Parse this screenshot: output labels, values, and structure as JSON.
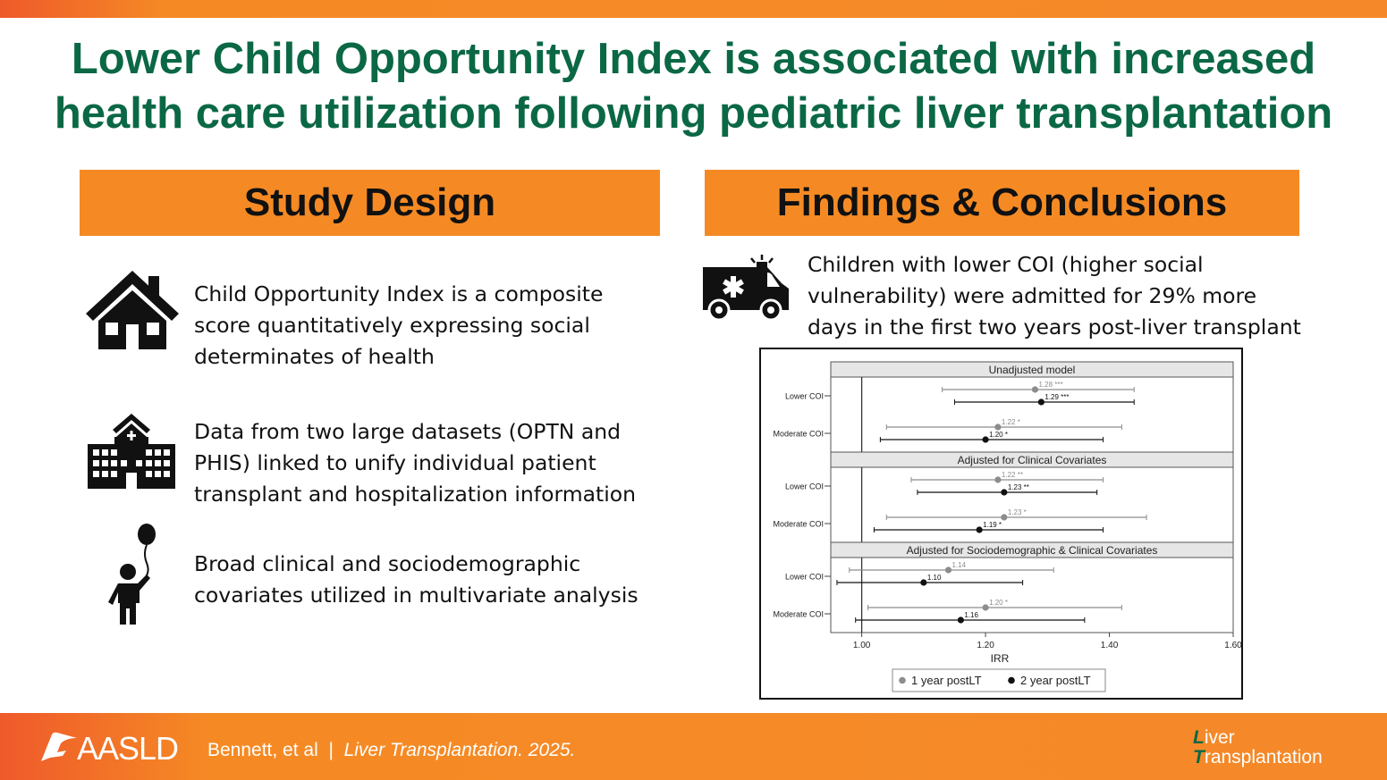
{
  "title": {
    "line1": "Lower Child Opportunity Index is associated with increased",
    "line2": "health care utilization following pediatric liver transplantation"
  },
  "study_design": {
    "heading": "Study Design",
    "items": [
      {
        "icon": "house-icon",
        "lines": [
          "Child Opportunity Index is a composite",
          "score quantitatively expressing social",
          "determinates of health"
        ]
      },
      {
        "icon": "hospital-icon",
        "lines": [
          "Data from two large datasets (OPTN and",
          "PHIS) linked to unify individual patient",
          "transplant and hospitalization information"
        ]
      },
      {
        "icon": "child-balloon-icon",
        "lines": [
          "Broad clinical and sociodemographic",
          "covariates utilized in multivariate analysis"
        ]
      }
    ]
  },
  "findings": {
    "heading": "Findings & Conclusions",
    "icon": "ambulance-icon",
    "lines": [
      "Children with lower COI (higher social",
      "vulnerability) were admitted for 29% more",
      "days in the first two years post-liver transplant"
    ]
  },
  "chart_data": {
    "type": "scatter",
    "subtype": "forest-plot",
    "xlabel": "IRR",
    "xlim": [
      0.95,
      1.6
    ],
    "xticks": [
      "1.00",
      "1.20",
      "1.40",
      "1.60"
    ],
    "reference_line": 1.0,
    "legend": {
      "placement": "bottom",
      "entries": [
        {
          "name": "1 year postLT",
          "color": "#8c8c8c"
        },
        {
          "name": "2 year postLT",
          "color": "#111111"
        }
      ]
    },
    "panels": [
      {
        "title": "Unadjusted model",
        "rows": [
          {
            "label": "Lower COI",
            "points": [
              {
                "series": "1 year postLT",
                "est": 1.28,
                "lo": 1.13,
                "hi": 1.44,
                "label": "1.28",
                "sig": "***"
              },
              {
                "series": "2 year postLT",
                "est": 1.29,
                "lo": 1.15,
                "hi": 1.44,
                "label": "1.29",
                "sig": "***"
              }
            ]
          },
          {
            "label": "Moderate COI",
            "points": [
              {
                "series": "1 year postLT",
                "est": 1.22,
                "lo": 1.04,
                "hi": 1.42,
                "label": "1.22",
                "sig": "*"
              },
              {
                "series": "2 year postLT",
                "est": 1.2,
                "lo": 1.03,
                "hi": 1.39,
                "label": "1.20",
                "sig": "*"
              }
            ]
          }
        ]
      },
      {
        "title": "Adjusted for Clinical Covariates",
        "rows": [
          {
            "label": "Lower COI",
            "points": [
              {
                "series": "1 year postLT",
                "est": 1.22,
                "lo": 1.08,
                "hi": 1.39,
                "label": "1.22",
                "sig": "**"
              },
              {
                "series": "2 year postLT",
                "est": 1.23,
                "lo": 1.09,
                "hi": 1.38,
                "label": "1.23",
                "sig": "**"
              }
            ]
          },
          {
            "label": "Moderate COI",
            "points": [
              {
                "series": "1 year postLT",
                "est": 1.23,
                "lo": 1.04,
                "hi": 1.46,
                "label": "1.23",
                "sig": "*"
              },
              {
                "series": "2 year postLT",
                "est": 1.19,
                "lo": 1.02,
                "hi": 1.39,
                "label": "1.19",
                "sig": "*"
              }
            ]
          }
        ]
      },
      {
        "title": "Adjusted for Sociodemographic & Clinical Covariates",
        "rows": [
          {
            "label": "Lower COI",
            "points": [
              {
                "series": "1 year postLT",
                "est": 1.14,
                "lo": 0.98,
                "hi": 1.31,
                "label": "1.14",
                "sig": ""
              },
              {
                "series": "2 year postLT",
                "est": 1.1,
                "lo": 0.96,
                "hi": 1.26,
                "label": "1.10",
                "sig": ""
              }
            ]
          },
          {
            "label": "Moderate COI",
            "points": [
              {
                "series": "1 year postLT",
                "est": 1.2,
                "lo": 1.01,
                "hi": 1.42,
                "label": "1.20",
                "sig": "*"
              },
              {
                "series": "2 year postLT",
                "est": 1.16,
                "lo": 0.99,
                "hi": 1.36,
                "label": "1.16",
                "sig": ""
              }
            ]
          }
        ]
      }
    ]
  },
  "footer": {
    "org": "AASLD",
    "authors": "Bennett, et al",
    "separator": "|",
    "journal": "Liver Transplantation. 2025.",
    "logo_line1_cap": "L",
    "logo_line1_rest": "iver",
    "logo_line2_cap": "T",
    "logo_line2_rest": "ransplantation"
  }
}
